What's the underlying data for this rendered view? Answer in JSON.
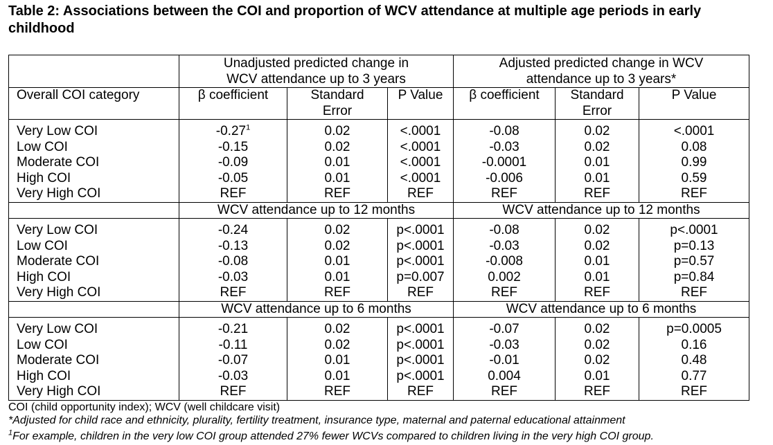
{
  "title": "Table 2: Associations between the COI and proportion of WCV attendance at multiple age periods in early childhood",
  "header": {
    "row_label": "Overall COI category",
    "group_unadjusted": "Unadjusted predicted change in WCV attendance up to 3 years",
    "group_adjusted": "Adjusted predicted change in WCV attendance up to 3 years*",
    "col_beta": "β coefficient",
    "col_se": "Standard Error",
    "col_p": "P Value"
  },
  "sections": [
    {
      "heading_left": "",
      "heading_right": "",
      "rows": [
        {
          "label": "Very Low COI",
          "ub": "-0.27",
          "ub_sup": "1",
          "use": "0.02",
          "up": "<.0001",
          "up_bold": true,
          "ab": "-0.08",
          "ase": "0.02",
          "ap": "<.0001",
          "ap_bold": true
        },
        {
          "label": "Low COI",
          "ub": "-0.15",
          "use": "0.02",
          "up": "<.0001",
          "up_bold": true,
          "ab": "-0.03",
          "ase": "0.02",
          "ap": "0.08",
          "ap_bold": false
        },
        {
          "label": "Moderate COI",
          "ub": "-0.09",
          "use": "0.01",
          "up": "<.0001",
          "up_bold": true,
          "ab": "-0.0001",
          "ase": "0.01",
          "ap": "0.99",
          "ap_bold": false
        },
        {
          "label": "High COI",
          "ub": "-0.05",
          "use": "0.01",
          "up": "<.0001",
          "up_bold": true,
          "ab": "-0.006",
          "ase": "0.01",
          "ap": "0.59",
          "ap_bold": false
        },
        {
          "label": "Very High COI",
          "ub": "REF",
          "use": "REF",
          "up": "REF",
          "up_bold": false,
          "ab": "REF",
          "ase": "REF",
          "ap": "REF",
          "ap_bold": false
        }
      ]
    },
    {
      "heading_left": "WCV attendance up to 12 months",
      "heading_right": "WCV attendance up to 12 months",
      "rows": [
        {
          "label": "Very Low COI",
          "ub": "-0.24",
          "use": "0.02",
          "up": "p<.0001",
          "up_bold": true,
          "ab": "-0.08",
          "ase": "0.02",
          "ap": "p<.0001",
          "ap_bold": true
        },
        {
          "label": "Low COI",
          "ub": "-0.13",
          "use": "0.02",
          "up": "p<.0001",
          "up_bold": true,
          "ab": "-0.03",
          "ase": "0.02",
          "ap": "p=0.13",
          "ap_bold": false
        },
        {
          "label": "Moderate COI",
          "ub": "-0.08",
          "use": "0.01",
          "up": "p<.0001",
          "up_bold": true,
          "ab": "-0.008",
          "ase": "0.01",
          "ap": "p=0.57",
          "ap_bold": false
        },
        {
          "label": "High COI",
          "ub": "-0.03",
          "use": "0.01",
          "up": "p=0.007",
          "up_bold": true,
          "ab": "0.002",
          "ase": "0.01",
          "ap": "p=0.84",
          "ap_bold": false
        },
        {
          "label": "Very High COI",
          "ub": "REF",
          "use": "REF",
          "up": "REF",
          "up_bold": false,
          "ab": "REF",
          "ase": "REF",
          "ap": "REF",
          "ap_bold": false
        }
      ]
    },
    {
      "heading_left": "WCV attendance up to 6 months",
      "heading_right": "WCV attendance up to 6 months",
      "rows": [
        {
          "label": "Very Low COI",
          "ub": "-0.21",
          "use": "0.02",
          "up": "p<.0001",
          "up_bold": true,
          "ab": "-0.07",
          "ase": "0.02",
          "ap": "p=0.0005",
          "ap_bold": true
        },
        {
          "label": "Low COI",
          "ub": "-0.11",
          "use": "0.02",
          "up": "p<.0001",
          "up_bold": true,
          "ab": "-0.03",
          "ase": "0.02",
          "ap": "0.16",
          "ap_bold": false
        },
        {
          "label": "Moderate COI",
          "ub": "-0.07",
          "use": "0.01",
          "up": "p<.0001",
          "up_bold": true,
          "ab": "-0.01",
          "ase": "0.02",
          "ap": "0.48",
          "ap_bold": false
        },
        {
          "label": "High COI",
          "ub": "-0.03",
          "use": "0.01",
          "up": "p<.0001",
          "up_bold": true,
          "ab": "0.004",
          "ase": "0.01",
          "ap": "0.77",
          "ap_bold": false
        },
        {
          "label": "Very High COI",
          "ub": "REF",
          "use": "REF",
          "up": "REF",
          "up_bold": false,
          "ab": "REF",
          "ase": "REF",
          "ap": "REF",
          "ap_bold": false
        }
      ]
    }
  ],
  "footnotes": {
    "abbrev": "COI (child opportunity index); WCV (well childcare visit)",
    "adjusted": "*Adjusted for child race and ethnicity, plurality, fertility treatment, insurance type, maternal and paternal educational attainment",
    "example_sup": "1",
    "example": "For example, children in the very low COI group attended 27% fewer WCVs compared to children living in the very high COI group."
  }
}
